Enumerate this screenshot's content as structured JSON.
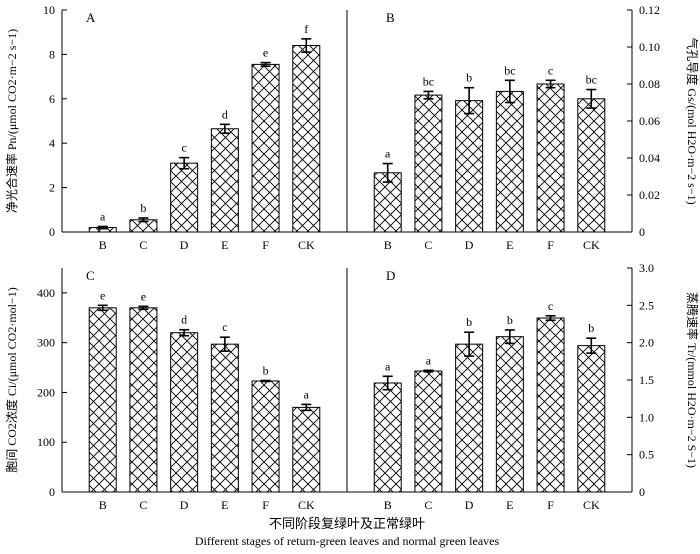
{
  "chart_data": [
    {
      "type": "bar",
      "panel": "A",
      "categories": [
        "B",
        "C",
        "D",
        "E",
        "F",
        "CK"
      ],
      "values": [
        0.2,
        0.55,
        3.1,
        4.65,
        7.55,
        8.4
      ],
      "errors": [
        0.05,
        0.08,
        0.25,
        0.2,
        0.08,
        0.3
      ],
      "letters": [
        "a",
        "b",
        "c",
        "d",
        "e",
        "f"
      ],
      "ylabel": "净光合速率 Pn/(μmol CO2·m−2 s−1)",
      "ylim": [
        0,
        10
      ],
      "yticks": [
        "0",
        "2",
        "4",
        "6",
        "8",
        "10"
      ],
      "axis_side": "left"
    },
    {
      "type": "bar",
      "panel": "B",
      "categories": [
        "B",
        "C",
        "D",
        "E",
        "F",
        "CK"
      ],
      "values": [
        0.032,
        0.074,
        0.071,
        0.076,
        0.08,
        0.072
      ],
      "errors": [
        0.005,
        0.002,
        0.007,
        0.006,
        0.002,
        0.005
      ],
      "letters": [
        "a",
        "bc",
        "b",
        "bc",
        "c",
        "bc"
      ],
      "ylabel": "气孔导度 Gs/(mol H2O·m−2 s−1)",
      "ylim": [
        0,
        0.12
      ],
      "yticks": [
        "0",
        "0.02",
        "0.04",
        "0.06",
        "0.08",
        "0.10",
        "0.12"
      ],
      "axis_side": "right"
    },
    {
      "type": "bar",
      "panel": "C",
      "categories": [
        "B",
        "C",
        "D",
        "E",
        "F",
        "CK"
      ],
      "values": [
        370,
        370,
        320,
        297,
        223,
        170
      ],
      "errors": [
        5,
        3,
        6,
        14,
        1,
        6
      ],
      "letters": [
        "e",
        "e",
        "d",
        "c",
        "b",
        "a"
      ],
      "ylabel": "胞间 CO2浓度 Ci/(μmol CO2·mol−1)",
      "ylim": [
        0,
        450
      ],
      "yticks": [
        "0",
        "100",
        "200",
        "300",
        "400"
      ],
      "axis_side": "left"
    },
    {
      "type": "bar",
      "panel": "D",
      "categories": [
        "B",
        "C",
        "D",
        "E",
        "F",
        "CK"
      ],
      "values": [
        1.46,
        1.62,
        1.98,
        2.08,
        2.33,
        1.96
      ],
      "errors": [
        0.09,
        0.01,
        0.16,
        0.09,
        0.03,
        0.1
      ],
      "letters": [
        "a",
        "a",
        "b",
        "b",
        "c",
        "b"
      ],
      "ylabel": "蒸腾速率 Tr/(mmol H2O·m−2 S−1)",
      "ylim": [
        0,
        3.0
      ],
      "yticks": [
        "0",
        "0.5",
        "1.0",
        "1.5",
        "2.0",
        "2.5",
        "3.0"
      ],
      "axis_side": "right"
    }
  ],
  "xlabel_cn": "不同阶段复绿叶及正常绿叶",
  "xlabel_en": "Different stages of return-green leaves and normal green leaves",
  "colors": {
    "bar_fill": "#ffffff",
    "hatch": "#000000",
    "axis": "#000000"
  }
}
